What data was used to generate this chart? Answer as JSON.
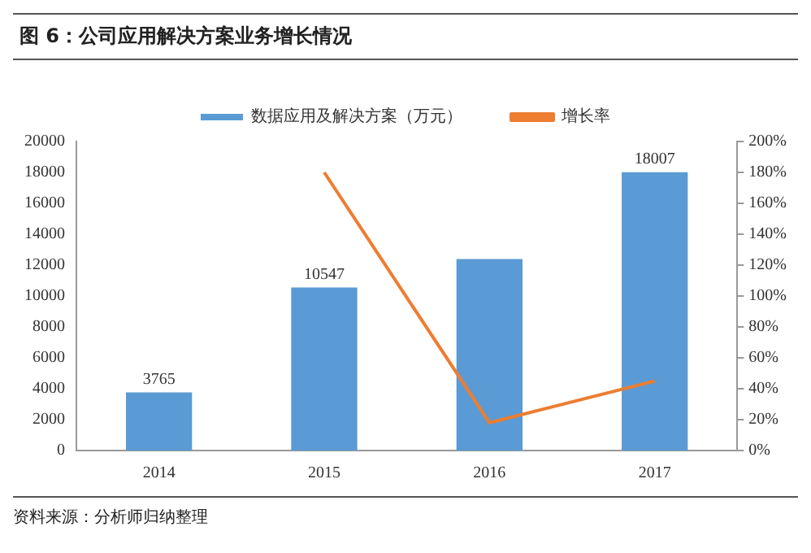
{
  "chart_data": {
    "type": "bar",
    "title": "图 6：公司应用解决方案业务增长情况",
    "categories": [
      "2014",
      "2015",
      "2016",
      "2017"
    ],
    "series": [
      {
        "name": "数据应用及解决方案（万元）",
        "color": "#5b9bd5",
        "values": [
          3765,
          10547,
          12400,
          18007
        ],
        "value_labels": [
          "3765",
          "10547",
          null,
          "18007"
        ]
      },
      {
        "name": "增长率",
        "type": "line",
        "axis": "y2",
        "color": "#ed7d31",
        "values": [
          null,
          180,
          18,
          45
        ],
        "marker": "none"
      }
    ],
    "ylim": [
      0,
      20000
    ],
    "yticks": [
      0,
      2000,
      4000,
      6000,
      8000,
      10000,
      12000,
      14000,
      16000,
      18000,
      20000
    ],
    "y2lim": [
      0,
      200
    ],
    "y2ticks": [
      {
        "value": 0,
        "label": "0%"
      },
      {
        "value": 20,
        "label": "20%"
      },
      {
        "value": 40,
        "label": "40%"
      },
      {
        "value": 60,
        "label": "60%"
      },
      {
        "value": 80,
        "label": "80%"
      },
      {
        "value": 100,
        "label": "100%"
      },
      {
        "value": 120,
        "label": "120%"
      },
      {
        "value": 140,
        "label": "140%"
      },
      {
        "value": 160,
        "label": "160%"
      },
      {
        "value": 180,
        "label": "180%"
      },
      {
        "value": 200,
        "label": "200%"
      }
    ],
    "legend": "top",
    "grid": false,
    "annotations": [
      "资料来源：分析师归纳整理"
    ]
  }
}
